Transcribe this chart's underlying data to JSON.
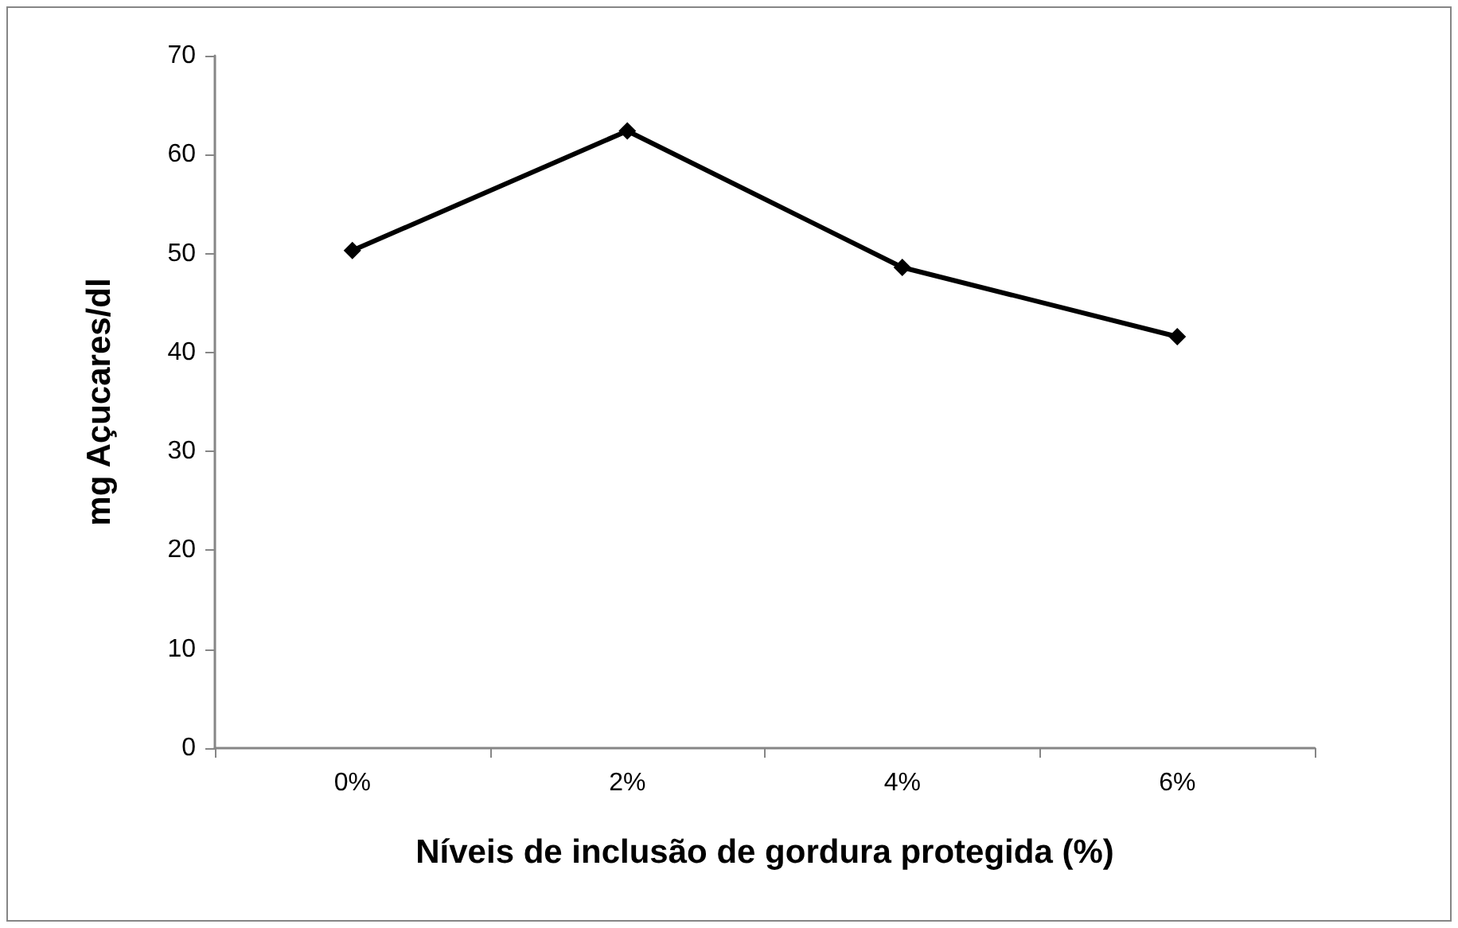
{
  "chart_data": {
    "type": "line",
    "xlabel": "Níveis de inclusão de gordura protegida (%)",
    "ylabel": "mg Açucares/dl",
    "categories": [
      "0%",
      "2%",
      "4%",
      "6%"
    ],
    "series": [
      {
        "color": "#000000",
        "values": [
          50.3,
          62.4,
          48.6,
          41.6
        ]
      }
    ],
    "ylim": [
      0,
      70
    ],
    "yticks": [
      0,
      10,
      20,
      30,
      40,
      50,
      60,
      70
    ],
    "grid": false,
    "marker": "diamond",
    "line_style": "solid"
  }
}
